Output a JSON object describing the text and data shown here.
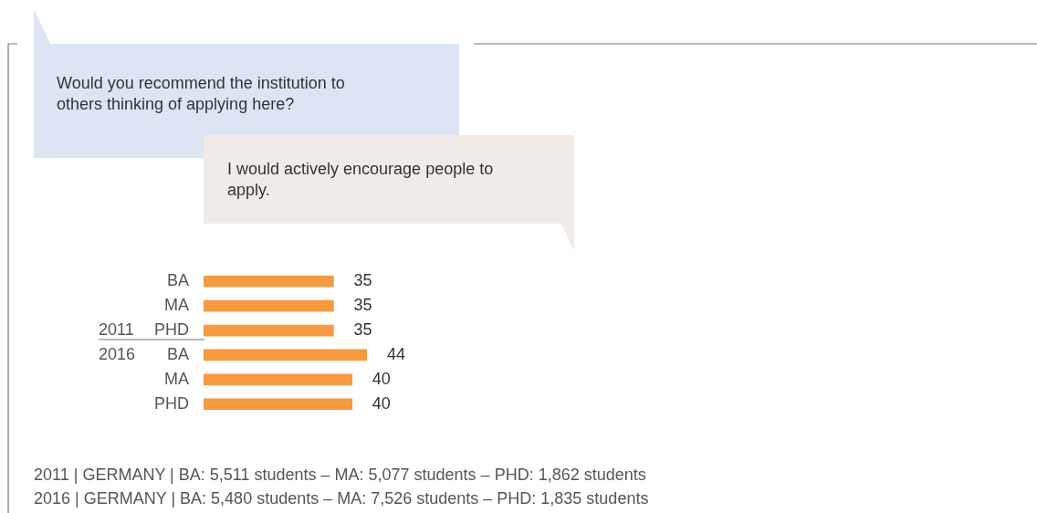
{
  "chart_data": {
    "type": "bar",
    "orientation": "horizontal",
    "title": "Would you recommend the institution to others thinking of applying here?",
    "subtitle": "I would actively encourage people to apply.",
    "categories": [
      "BA",
      "MA",
      "PHD",
      "BA",
      "MA",
      "PHD"
    ],
    "values": [
      35,
      35,
      35,
      44,
      40,
      40
    ],
    "color": "#f59a40",
    "data_labels": true,
    "tick_labels": "y",
    "legend": false,
    "annotations": [
      "2011",
      "2016",
      "2011 | GERMANY | BA: 5,511 students – MA: 5,077 students – PHD: 1,862 students",
      "2016 | GERMANY | BA: 5,480 students – MA: 7,526 students – PHD: 1,835 students"
    ]
  }
}
